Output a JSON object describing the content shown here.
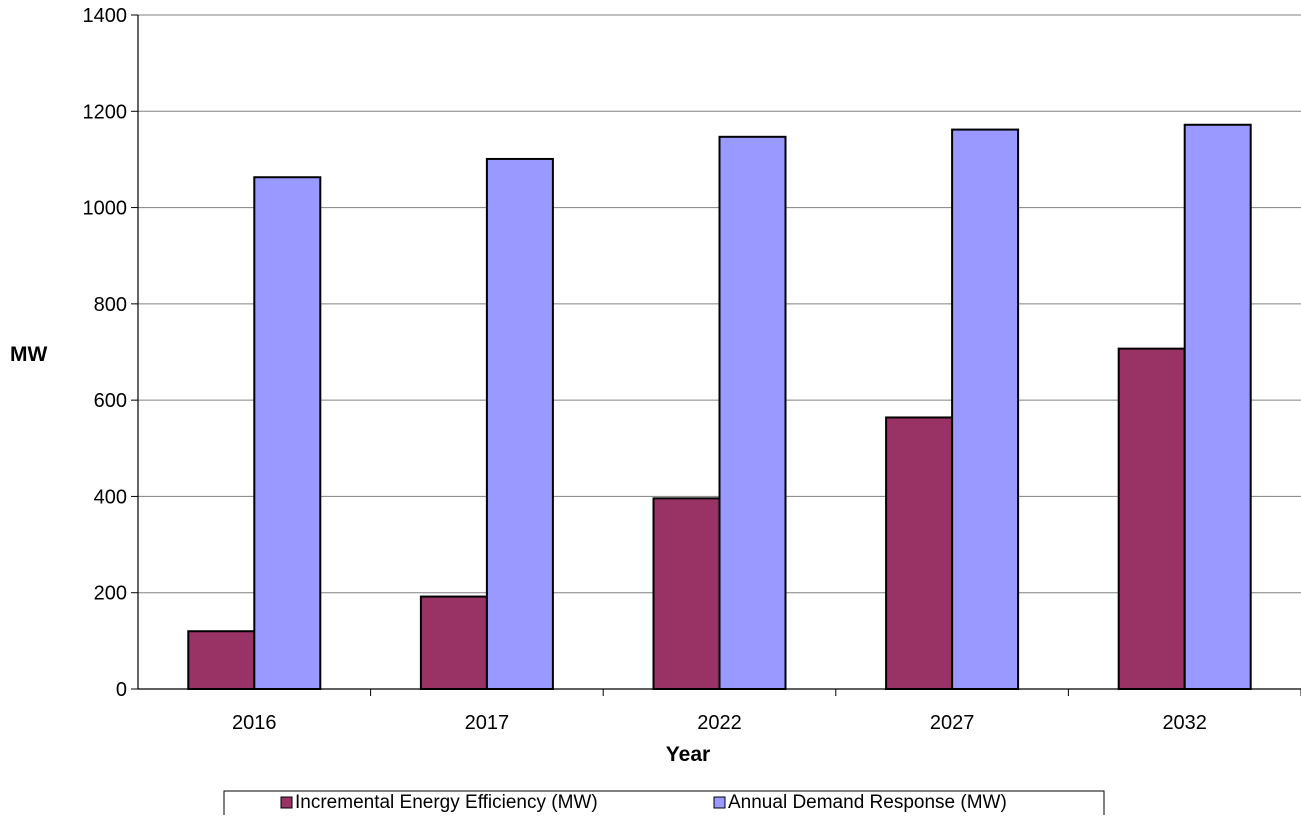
{
  "chart_data": {
    "type": "bar",
    "title": "",
    "xlabel": "Year",
    "ylabel": "MW",
    "categories": [
      "2016",
      "2017",
      "2022",
      "2027",
      "2032"
    ],
    "series": [
      {
        "name": "Incremental Energy Efficiency (MW)",
        "color": "#993366",
        "values": [
          120,
          192,
          396,
          564,
          707
        ]
      },
      {
        "name": "Annual Demand Response (MW)",
        "color": "#9999ff",
        "values": [
          1063,
          1101,
          1147,
          1162,
          1172
        ]
      }
    ],
    "ylim": [
      0,
      1400
    ],
    "yticks": [
      "0",
      "200",
      "400",
      "600",
      "800",
      "1000",
      "1200",
      "1400"
    ],
    "grid": true,
    "legend_position": "bottom"
  }
}
